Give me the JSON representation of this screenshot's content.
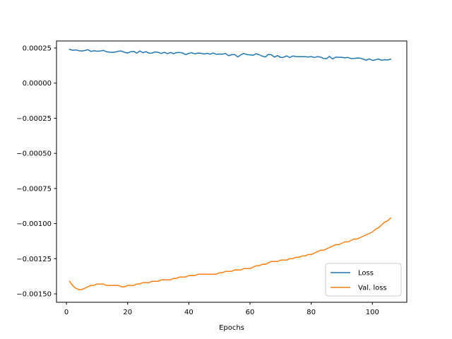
{
  "chart_data": {
    "type": "line",
    "title": "",
    "xlabel": "Epochs",
    "ylabel": "",
    "xlim": [
      -3.25,
      111.25
    ],
    "ylim": [
      -0.00156,
      0.0003
    ],
    "x_ticks": [
      0,
      20,
      40,
      60,
      80,
      100
    ],
    "x_tick_labels": [
      "0",
      "20",
      "40",
      "60",
      "80",
      "100"
    ],
    "y_ticks": [
      0.00025,
      0.0,
      -0.00025,
      -0.0005,
      -0.00075,
      -0.001,
      -0.00125,
      -0.0015
    ],
    "y_tick_labels": [
      "0.00025",
      "0.00000",
      "−0.00025",
      "−0.00050",
      "−0.00075",
      "−0.00100",
      "−0.00125",
      "−0.00150"
    ],
    "grid": false,
    "legend_position": "lower right",
    "series": [
      {
        "name": "Loss",
        "color": "#1f77b4",
        "x": [
          1,
          2,
          3,
          4,
          5,
          6,
          7,
          8,
          9,
          10,
          11,
          12,
          13,
          14,
          15,
          16,
          17,
          18,
          19,
          20,
          21,
          22,
          23,
          24,
          25,
          26,
          27,
          28,
          29,
          30,
          31,
          32,
          33,
          34,
          35,
          36,
          37,
          38,
          39,
          40,
          41,
          42,
          43,
          44,
          45,
          46,
          47,
          48,
          49,
          50,
          51,
          52,
          53,
          54,
          55,
          56,
          57,
          58,
          59,
          60,
          61,
          62,
          63,
          64,
          65,
          66,
          67,
          68,
          69,
          70,
          71,
          72,
          73,
          74,
          75,
          76,
          77,
          78,
          79,
          80,
          81,
          82,
          83,
          84,
          85,
          86,
          87,
          88,
          89,
          90,
          91,
          92,
          93,
          94,
          95,
          96,
          97,
          98,
          99,
          100,
          101,
          102,
          103,
          104,
          105,
          106
        ],
        "y": [
          0.00024,
          0.000234,
          0.000236,
          0.000231,
          0.000228,
          0.000232,
          0.000238,
          0.000226,
          0.00023,
          0.000227,
          0.000228,
          0.000233,
          0.000224,
          0.00022,
          0.000219,
          0.000221,
          0.000227,
          0.000228,
          0.000219,
          0.000214,
          0.000223,
          0.000226,
          0.000213,
          0.000229,
          0.000216,
          0.000224,
          0.000213,
          0.000214,
          0.000222,
          0.000219,
          0.000211,
          0.000219,
          0.00021,
          0.000218,
          0.000209,
          0.000217,
          0.000218,
          0.000214,
          0.000203,
          0.000212,
          0.000216,
          0.000208,
          0.000214,
          0.000212,
          0.000207,
          0.000212,
          0.000206,
          0.000214,
          0.000205,
          0.000207,
          0.000206,
          0.000211,
          0.000195,
          0.000202,
          0.000203,
          0.000187,
          0.000201,
          0.000211,
          0.000203,
          0.000201,
          0.000198,
          0.000209,
          0.000202,
          0.000192,
          0.000186,
          0.000204,
          0.000202,
          0.000185,
          0.000196,
          0.000183,
          0.000184,
          0.000194,
          0.000182,
          0.000193,
          0.000189,
          0.000188,
          0.000188,
          0.000188,
          0.000186,
          0.000189,
          0.000183,
          0.000188,
          0.000186,
          0.000176,
          0.000174,
          0.00019,
          0.000172,
          0.000185,
          0.000184,
          0.000184,
          0.00018,
          0.000183,
          0.000175,
          0.000176,
          0.000179,
          0.000178,
          0.000171,
          0.000163,
          0.000173,
          0.000162,
          0.000166,
          0.000172,
          0.000163,
          0.000167,
          0.000165,
          0.000171
        ]
      },
      {
        "name": "Val. loss",
        "color": "#ff7f0e",
        "x": [
          1,
          2,
          3,
          4,
          5,
          6,
          7,
          8,
          9,
          10,
          11,
          12,
          13,
          14,
          15,
          16,
          17,
          18,
          19,
          20,
          21,
          22,
          23,
          24,
          25,
          26,
          27,
          28,
          29,
          30,
          31,
          32,
          33,
          34,
          35,
          36,
          37,
          38,
          39,
          40,
          41,
          42,
          43,
          44,
          45,
          46,
          47,
          48,
          49,
          50,
          51,
          52,
          53,
          54,
          55,
          56,
          57,
          58,
          59,
          60,
          61,
          62,
          63,
          64,
          65,
          66,
          67,
          68,
          69,
          70,
          71,
          72,
          73,
          74,
          75,
          76,
          77,
          78,
          79,
          80,
          81,
          82,
          83,
          84,
          85,
          86,
          87,
          88,
          89,
          90,
          91,
          92,
          93,
          94,
          95,
          96,
          97,
          98,
          99,
          100,
          101,
          102,
          103,
          104,
          105,
          106
        ],
        "y": [
          -0.00141,
          -0.00144,
          -0.00146,
          -0.00147,
          -0.00147,
          -0.00146,
          -0.00145,
          -0.00144,
          -0.00144,
          -0.00143,
          -0.00143,
          -0.00143,
          -0.00144,
          -0.00144,
          -0.00144,
          -0.00144,
          -0.00144,
          -0.00145,
          -0.00145,
          -0.00144,
          -0.00144,
          -0.00144,
          -0.00143,
          -0.00143,
          -0.00142,
          -0.00142,
          -0.00142,
          -0.00141,
          -0.00141,
          -0.00141,
          -0.0014,
          -0.0014,
          -0.0014,
          -0.0014,
          -0.00139,
          -0.00139,
          -0.00138,
          -0.00138,
          -0.00138,
          -0.00137,
          -0.00137,
          -0.00137,
          -0.00136,
          -0.00136,
          -0.00136,
          -0.00136,
          -0.00136,
          -0.00136,
          -0.00136,
          -0.00135,
          -0.00135,
          -0.00134,
          -0.00134,
          -0.00134,
          -0.00133,
          -0.00133,
          -0.00133,
          -0.00132,
          -0.00132,
          -0.00132,
          -0.00131,
          -0.0013,
          -0.0013,
          -0.00129,
          -0.00129,
          -0.00128,
          -0.00127,
          -0.00127,
          -0.00127,
          -0.00126,
          -0.00126,
          -0.00126,
          -0.00125,
          -0.00125,
          -0.00124,
          -0.00124,
          -0.00123,
          -0.00123,
          -0.00122,
          -0.00122,
          -0.00121,
          -0.0012,
          -0.00119,
          -0.00119,
          -0.00118,
          -0.00117,
          -0.00116,
          -0.00115,
          -0.00115,
          -0.00114,
          -0.00113,
          -0.00113,
          -0.00112,
          -0.00111,
          -0.00111,
          -0.0011,
          -0.00109,
          -0.00108,
          -0.00107,
          -0.00106,
          -0.00104,
          -0.00103,
          -0.00101,
          -0.00099,
          -0.00098,
          -0.00096
        ]
      }
    ]
  }
}
